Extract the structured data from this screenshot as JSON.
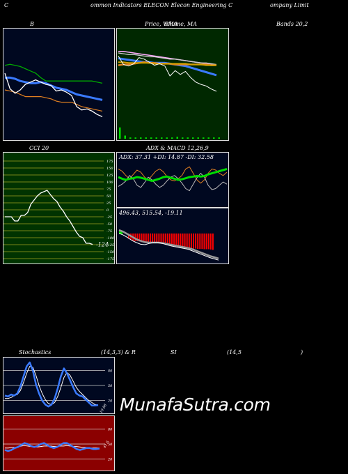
{
  "header": {
    "title_parts": [
      "C",
      "ommon  Indicators ELECON  Elecon  Engineering C",
      "ompany Limit"
    ]
  },
  "labels": {
    "b": "B",
    "price_sma": "Price,  Volume,  MA",
    "price_overlap": "SMA",
    "bands": "Bands 20,2",
    "cci": "CCI 20",
    "adx_macd": "ADX  & MACD 12,26,9",
    "stoch": "Stochastics",
    "stoch_params": "(14,3,3) & R",
    "rsi": "SI",
    "rsi_params": "(14,5",
    "rsi_close": ")"
  },
  "watermark": "MunafaSutra.com",
  "colors": {
    "navy": "#000820",
    "dark_green": "#003300",
    "cci_bg": "#003300",
    "rsi_bg": "#8b0000",
    "macd_bar": "#ff0000",
    "adx_green": "#00dd00",
    "band_green": "#00aa00",
    "ma_blue": "#3a7aff",
    "orange": "#e08020",
    "pink": "#ffaaff"
  },
  "chart_data": [
    {
      "type": "line",
      "name": "bollinger",
      "series": [
        {
          "values": [
            0.67,
            0.68,
            0.67,
            0.66,
            0.64,
            0.62,
            0.6,
            0.56,
            0.53,
            0.53,
            0.53,
            0.53,
            0.53,
            0.53,
            0.53,
            0.53,
            0.53,
            0.53,
            0.52,
            0.51
          ]
        },
        {
          "values": [
            0.56,
            0.56,
            0.55,
            0.53,
            0.52,
            0.51,
            0.51,
            0.52,
            0.51,
            0.49,
            0.47,
            0.46,
            0.45,
            0.43,
            0.41,
            0.4,
            0.39,
            0.38,
            0.37,
            0.36
          ]
        },
        {
          "values": [
            0.45,
            0.44,
            0.43,
            0.41,
            0.39,
            0.39,
            0.39,
            0.39,
            0.38,
            0.37,
            0.35,
            0.34,
            0.34,
            0.34,
            0.32,
            0.3,
            0.29,
            0.28,
            0.27,
            0.26
          ]
        },
        {
          "values": [
            0.6,
            0.46,
            0.42,
            0.45,
            0.5,
            0.52,
            0.54,
            0.52,
            0.5,
            0.49,
            0.44,
            0.45,
            0.43,
            0.4,
            0.3,
            0.27,
            0.28,
            0.26,
            0.23,
            0.21
          ]
        }
      ]
    },
    {
      "type": "line",
      "name": "price_ma",
      "series": [
        {
          "values": [
            0.52,
            0.52,
            0.51,
            0.5,
            0.49,
            0.48,
            0.47,
            0.46,
            0.45,
            0.44,
            0.43,
            0.42,
            0.41,
            0.4,
            0.39,
            0.38,
            0.37,
            0.36,
            0.35,
            0.34
          ]
        },
        {
          "values": [
            0.5,
            0.49,
            0.48,
            0.48,
            0.47,
            0.46,
            0.45,
            0.45,
            0.44,
            0.43,
            0.42,
            0.42,
            0.41,
            0.4,
            0.39,
            0.38,
            0.37,
            0.37,
            0.36,
            0.35
          ]
        },
        {
          "values": [
            0.43,
            0.42,
            0.41,
            0.4,
            0.39,
            0.38,
            0.38,
            0.37,
            0.37,
            0.37,
            0.36,
            0.35,
            0.34,
            0.33,
            0.31,
            0.29,
            0.27,
            0.25,
            0.23,
            0.21
          ]
        },
        {
          "values": [
            0.34,
            0.35,
            0.35,
            0.36,
            0.37,
            0.38,
            0.37,
            0.37,
            0.36,
            0.36,
            0.36,
            0.35,
            0.35,
            0.35,
            0.35,
            0.35,
            0.35,
            0.35,
            0.34,
            0.34
          ]
        },
        {
          "values": [
            0.38,
            0.38,
            0.37,
            0.37,
            0.37,
            0.37,
            0.37,
            0.36,
            0.36,
            0.36,
            0.36,
            0.36,
            0.36,
            0.36,
            0.35,
            0.35,
            0.35,
            0.34,
            0.34,
            0.34
          ]
        },
        {
          "values": [
            0.46,
            0.35,
            0.33,
            0.36,
            0.44,
            0.42,
            0.38,
            0.34,
            0.36,
            0.33,
            0.2,
            0.27,
            0.22,
            0.26,
            0.18,
            0.12,
            0.09,
            0.07,
            0.03,
            0.0
          ]
        }
      ],
      "volume": [
        0.9,
        0.25,
        0.1,
        0.1,
        0.1,
        0.1,
        0.1,
        0.1,
        0.1,
        0.1,
        0.1,
        0.15,
        0.1,
        0.1,
        0.1,
        0.1,
        0.1,
        0.1,
        0.1,
        0.1
      ]
    },
    {
      "type": "line",
      "name": "cci",
      "yticks": [
        175,
        150,
        125,
        100,
        75,
        50,
        25,
        0,
        -25,
        -50,
        -75,
        -100,
        -125,
        -150,
        -175
      ],
      "ylim": [
        -175,
        175
      ],
      "last_value_label": "-124",
      "values": [
        -25,
        -25,
        -25,
        -40,
        -40,
        -20,
        -20,
        -10,
        20,
        35,
        50,
        60,
        65,
        70,
        55,
        40,
        30,
        10,
        -5,
        -25,
        -40,
        -60,
        -80,
        -95,
        -100,
        -120,
        -120,
        -124
      ]
    },
    {
      "type": "line",
      "name": "adx",
      "label": "ADX: 37.31  +DI: 14.87  -DI: 32.58",
      "series": [
        {
          "values": [
            0.55,
            0.52,
            0.5,
            0.52,
            0.53,
            0.55,
            0.54,
            0.52,
            0.5,
            0.48,
            0.5,
            0.52,
            0.55,
            0.56,
            0.54,
            0.52,
            0.5,
            0.51,
            0.53,
            0.55,
            0.56,
            0.57,
            0.56,
            0.57,
            0.6,
            0.62,
            0.64,
            0.66,
            0.68,
            0.7
          ]
        },
        {
          "values": [
            0.7,
            0.66,
            0.58,
            0.52,
            0.6,
            0.68,
            0.64,
            0.55,
            0.5,
            0.58,
            0.66,
            0.7,
            0.65,
            0.56,
            0.5,
            0.48,
            0.52,
            0.58,
            0.7,
            0.74,
            0.62,
            0.5,
            0.44,
            0.5,
            0.62,
            0.7,
            0.68,
            0.62,
            0.58,
            0.64
          ]
        },
        {
          "values": [
            0.38,
            0.42,
            0.48,
            0.58,
            0.52,
            0.4,
            0.36,
            0.45,
            0.55,
            0.5,
            0.42,
            0.36,
            0.4,
            0.48,
            0.55,
            0.58,
            0.52,
            0.44,
            0.34,
            0.3,
            0.42,
            0.54,
            0.62,
            0.55,
            0.4,
            0.32,
            0.34,
            0.4,
            0.46,
            0.42
          ]
        }
      ]
    },
    {
      "type": "bar",
      "name": "macd",
      "label": "496.43,  515.54,  -19.11",
      "histogram": [
        0.15,
        0.18,
        0.2,
        0.22,
        0.22,
        0.23,
        0.25,
        0.26,
        0.28,
        0.28,
        0.27,
        0.25,
        0.24,
        0.25,
        0.26,
        0.27,
        0.28,
        0.3,
        0.32,
        0.33,
        0.34,
        0.36,
        0.37,
        0.38,
        0.4,
        0.41,
        0.42,
        0.42,
        0.43,
        0.43,
        0.43,
        0.43,
        0.44,
        0.44,
        0.44,
        0.45,
        0.45,
        0.45,
        0.46,
        0.47
      ],
      "macd": [
        0.72,
        0.68,
        0.62,
        0.55,
        0.5,
        0.46,
        0.45,
        0.48,
        0.5,
        0.5,
        0.48,
        0.45,
        0.42,
        0.4,
        0.38,
        0.36,
        0.34,
        0.3,
        0.26,
        0.22,
        0.18,
        0.14,
        0.11,
        0.08
      ],
      "signal": [
        0.8,
        0.76,
        0.7,
        0.64,
        0.58,
        0.54,
        0.51,
        0.5,
        0.5,
        0.5,
        0.49,
        0.47,
        0.45,
        0.43,
        0.41,
        0.39,
        0.37,
        0.34,
        0.3,
        0.26,
        0.22,
        0.18,
        0.15,
        0.12
      ]
    },
    {
      "type": "line",
      "name": "stochastics",
      "yticks": [
        80,
        50,
        20
      ],
      "ylim": [
        0,
        100
      ],
      "last_value_label": "10.88",
      "k": [
        30,
        28,
        32,
        30,
        34,
        48,
        68,
        88,
        96,
        80,
        52,
        34,
        20,
        12,
        8,
        12,
        24,
        44,
        68,
        84,
        74,
        60,
        46,
        34,
        30,
        28,
        22,
        16,
        10,
        10,
        11
      ],
      "d": [
        24,
        24,
        26,
        30,
        32,
        40,
        56,
        74,
        88,
        86,
        70,
        50,
        34,
        22,
        14,
        12,
        16,
        28,
        46,
        66,
        76,
        70,
        58,
        46,
        38,
        32,
        26,
        20,
        16,
        12,
        11
      ]
    },
    {
      "type": "line",
      "name": "rsi",
      "yticks": [
        80,
        50,
        20
      ],
      "ylim": [
        0,
        100
      ],
      "last_value_label": "41.6",
      "series": [
        {
          "values": [
            42,
            42,
            43,
            43,
            44,
            46,
            47,
            46,
            45,
            44,
            44,
            45,
            46,
            46,
            46,
            45,
            45,
            46,
            46,
            47,
            46,
            45,
            45,
            44,
            43,
            43,
            42,
            42,
            42,
            42
          ]
        },
        {
          "values": [
            38,
            36,
            38,
            42,
            44,
            48,
            52,
            50,
            46,
            44,
            46,
            50,
            52,
            48,
            44,
            42,
            44,
            48,
            52,
            52,
            48,
            44,
            40,
            38,
            40,
            42,
            42,
            40,
            40,
            41
          ]
        }
      ]
    }
  ]
}
